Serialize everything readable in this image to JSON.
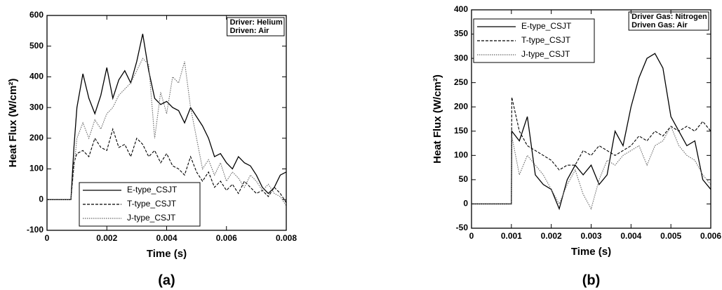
{
  "chart_data": [
    {
      "type": "line",
      "caption": "(a)",
      "xlabel": "Time (s)",
      "ylabel": "Heat Flux (W/cm²)",
      "annotations": [
        "Driver: Helium",
        "Driven: Air"
      ],
      "legend": "lower left",
      "xlim": [
        0,
        0.008
      ],
      "xticks": [
        0,
        0.002,
        0.004,
        0.006,
        0.008
      ],
      "ylim": [
        -100,
        600
      ],
      "yticks": [
        -100,
        0,
        100,
        200,
        300,
        400,
        500,
        600
      ],
      "x": [
        0,
        0.0008,
        0.0009,
        0.001,
        0.0012,
        0.0014,
        0.0016,
        0.0018,
        0.002,
        0.0022,
        0.0024,
        0.0026,
        0.0028,
        0.003,
        0.0032,
        0.0034,
        0.0036,
        0.0038,
        0.004,
        0.0042,
        0.0044,
        0.0046,
        0.0048,
        0.005,
        0.0052,
        0.0054,
        0.0056,
        0.0058,
        0.006,
        0.0062,
        0.0064,
        0.0066,
        0.0068,
        0.007,
        0.0072,
        0.0074,
        0.0076,
        0.0078,
        0.008
      ],
      "series": [
        {
          "name": "E-type_CSJT",
          "color": "#000000",
          "line_style": "solid",
          "values": [
            0,
            0,
            170,
            300,
            410,
            330,
            280,
            340,
            430,
            330,
            390,
            420,
            380,
            450,
            540,
            420,
            330,
            310,
            320,
            300,
            290,
            250,
            300,
            270,
            240,
            200,
            140,
            150,
            120,
            100,
            140,
            120,
            110,
            80,
            40,
            20,
            40,
            80,
            90
          ]
        },
        {
          "name": "T-type_CSJT",
          "color": "#000000",
          "line_style": "dashed",
          "values": [
            0,
            0,
            120,
            150,
            160,
            140,
            200,
            170,
            160,
            230,
            170,
            180,
            140,
            200,
            180,
            140,
            160,
            120,
            150,
            110,
            100,
            80,
            140,
            90,
            60,
            90,
            40,
            60,
            30,
            50,
            20,
            60,
            40,
            20,
            30,
            10,
            40,
            20,
            -10
          ]
        },
        {
          "name": "J-type_CSJT",
          "color": "#666666",
          "line_style": "dotted",
          "values": [
            0,
            0,
            100,
            200,
            250,
            200,
            260,
            230,
            280,
            300,
            340,
            360,
            380,
            420,
            460,
            440,
            200,
            350,
            280,
            400,
            380,
            450,
            300,
            200,
            100,
            130,
            80,
            120,
            60,
            90,
            70,
            40,
            80,
            60,
            30,
            50,
            20,
            10,
            -20
          ]
        }
      ]
    },
    {
      "type": "line",
      "caption": "(b)",
      "xlabel": "Time (s)",
      "ylabel": "Heat Flux (W/cm²)",
      "annotations": [
        "Driver Gas: Nitrogen",
        "Driven Gas: Air"
      ],
      "legend": "upper left",
      "xlim": [
        0,
        0.006
      ],
      "xticks": [
        0,
        0.001,
        0.002,
        0.003,
        0.004,
        0.005,
        0.006
      ],
      "ylim": [
        -50,
        400
      ],
      "yticks": [
        -50,
        0,
        50,
        100,
        150,
        200,
        250,
        300,
        350,
        400
      ],
      "x": [
        0,
        0.001,
        0.00101,
        0.0012,
        0.0014,
        0.0016,
        0.0018,
        0.002,
        0.0022,
        0.0024,
        0.0026,
        0.0028,
        0.003,
        0.0032,
        0.0034,
        0.0036,
        0.0038,
        0.004,
        0.0042,
        0.0044,
        0.0046,
        0.0048,
        0.005,
        0.0052,
        0.0054,
        0.0056,
        0.0058,
        0.006
      ],
      "series": [
        {
          "name": "E-type_CSJT",
          "color": "#000000",
          "line_style": "solid",
          "values": [
            0,
            0,
            150,
            130,
            180,
            60,
            40,
            30,
            -10,
            50,
            80,
            60,
            80,
            40,
            60,
            150,
            120,
            200,
            260,
            300,
            310,
            280,
            180,
            150,
            120,
            130,
            50,
            30
          ]
        },
        {
          "name": "T-type_CSJT",
          "color": "#000000",
          "line_style": "dashed",
          "values": [
            0,
            0,
            220,
            150,
            120,
            110,
            100,
            90,
            70,
            80,
            80,
            110,
            100,
            120,
            110,
            100,
            110,
            120,
            140,
            130,
            150,
            140,
            160,
            150,
            160,
            150,
            170,
            150
          ]
        },
        {
          "name": "J-type_CSJT",
          "color": "#666666",
          "line_style": "dotted",
          "values": [
            0,
            0,
            140,
            60,
            100,
            80,
            60,
            30,
            0,
            40,
            70,
            20,
            -10,
            50,
            90,
            80,
            100,
            110,
            120,
            80,
            120,
            130,
            160,
            120,
            100,
            90,
            60,
            40
          ]
        }
      ]
    }
  ]
}
